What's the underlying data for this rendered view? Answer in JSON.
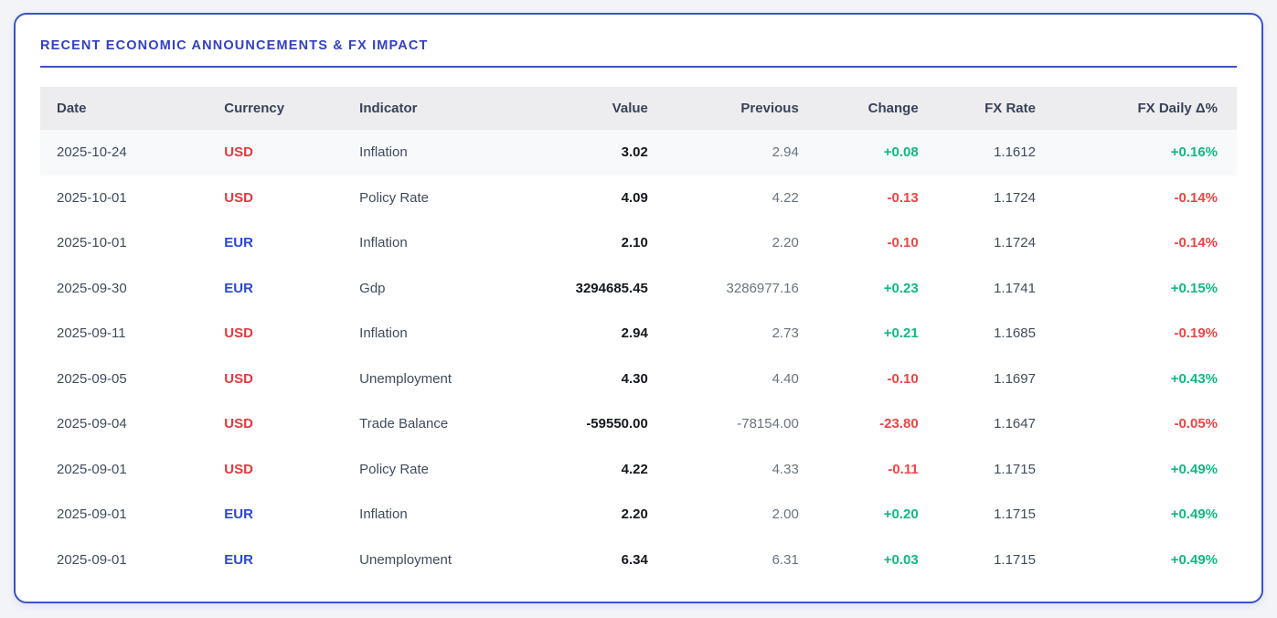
{
  "title": "RECENT ECONOMIC ANNOUNCEMENTS & FX IMPACT",
  "colors": {
    "accent_blue": "#3240c4",
    "card_border": "#3c52cc",
    "usd": "#e5393f",
    "eur": "#2b47d7",
    "positive": "#10b981",
    "negative": "#ef4444"
  },
  "table": {
    "columns": [
      {
        "key": "date",
        "label": "Date",
        "align": "left"
      },
      {
        "key": "currency",
        "label": "Currency",
        "align": "left"
      },
      {
        "key": "indicator",
        "label": "Indicator",
        "align": "left"
      },
      {
        "key": "value",
        "label": "Value",
        "align": "right"
      },
      {
        "key": "previous",
        "label": "Previous",
        "align": "right"
      },
      {
        "key": "change",
        "label": "Change",
        "align": "right"
      },
      {
        "key": "fx_rate",
        "label": "FX Rate",
        "align": "right"
      },
      {
        "key": "fx_daily",
        "label": "FX Daily Δ%",
        "align": "right"
      }
    ],
    "rows": [
      {
        "date": "2025-10-24",
        "currency": "USD",
        "indicator": "Inflation",
        "value": "3.02",
        "previous": "2.94",
        "change": "+0.08",
        "fx_rate": "1.1612",
        "fx_daily": "+0.16%",
        "highlighted": true
      },
      {
        "date": "2025-10-01",
        "currency": "USD",
        "indicator": "Policy Rate",
        "value": "4.09",
        "previous": "4.22",
        "change": "-0.13",
        "fx_rate": "1.1724",
        "fx_daily": "-0.14%",
        "highlighted": false
      },
      {
        "date": "2025-10-01",
        "currency": "EUR",
        "indicator": "Inflation",
        "value": "2.10",
        "previous": "2.20",
        "change": "-0.10",
        "fx_rate": "1.1724",
        "fx_daily": "-0.14%",
        "highlighted": false
      },
      {
        "date": "2025-09-30",
        "currency": "EUR",
        "indicator": "Gdp",
        "value": "3294685.45",
        "previous": "3286977.16",
        "change": "+0.23",
        "fx_rate": "1.1741",
        "fx_daily": "+0.15%",
        "highlighted": false
      },
      {
        "date": "2025-09-11",
        "currency": "USD",
        "indicator": "Inflation",
        "value": "2.94",
        "previous": "2.73",
        "change": "+0.21",
        "fx_rate": "1.1685",
        "fx_daily": "-0.19%",
        "highlighted": false
      },
      {
        "date": "2025-09-05",
        "currency": "USD",
        "indicator": "Unemployment",
        "value": "4.30",
        "previous": "4.40",
        "change": "-0.10",
        "fx_rate": "1.1697",
        "fx_daily": "+0.43%",
        "highlighted": false
      },
      {
        "date": "2025-09-04",
        "currency": "USD",
        "indicator": "Trade Balance",
        "value": "-59550.00",
        "previous": "-78154.00",
        "change": "-23.80",
        "fx_rate": "1.1647",
        "fx_daily": "-0.05%",
        "highlighted": false
      },
      {
        "date": "2025-09-01",
        "currency": "USD",
        "indicator": "Policy Rate",
        "value": "4.22",
        "previous": "4.33",
        "change": "-0.11",
        "fx_rate": "1.1715",
        "fx_daily": "+0.49%",
        "highlighted": false
      },
      {
        "date": "2025-09-01",
        "currency": "EUR",
        "indicator": "Inflation",
        "value": "2.20",
        "previous": "2.00",
        "change": "+0.20",
        "fx_rate": "1.1715",
        "fx_daily": "+0.49%",
        "highlighted": false
      },
      {
        "date": "2025-09-01",
        "currency": "EUR",
        "indicator": "Unemployment",
        "value": "6.34",
        "previous": "6.31",
        "change": "+0.03",
        "fx_rate": "1.1715",
        "fx_daily": "+0.49%",
        "highlighted": false
      }
    ]
  }
}
